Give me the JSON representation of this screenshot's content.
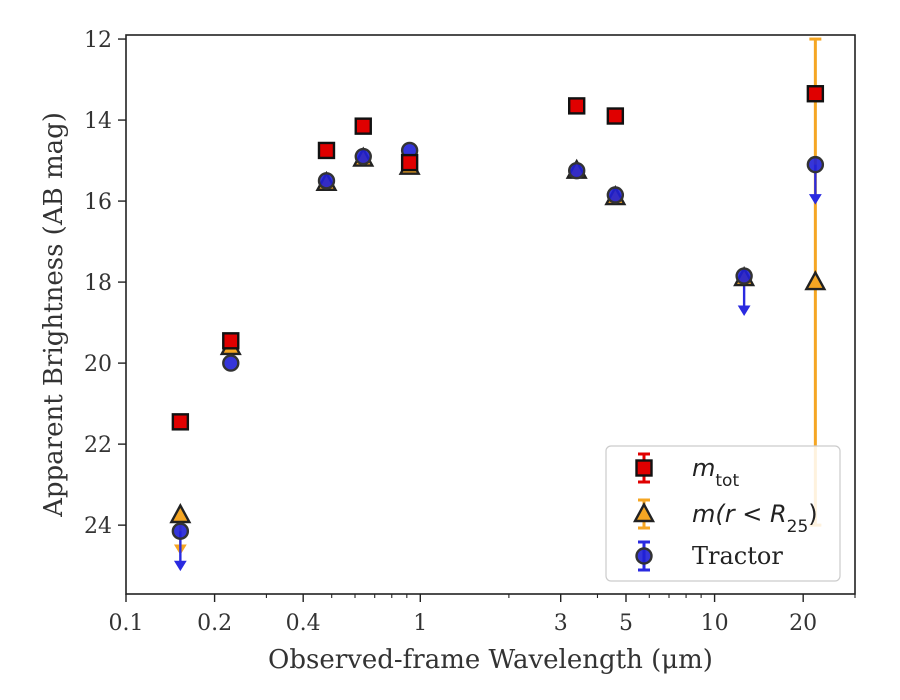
{
  "chart_data": {
    "type": "scatter",
    "xlabel": "Observed-frame Wavelength (μm)",
    "ylabel": "Apparent Brightness (AB mag)",
    "xscale": "log",
    "xlim": [
      0.1,
      30
    ],
    "ylim": [
      25.7,
      11.9
    ],
    "y_inverted": true,
    "xticks": [
      {
        "value": 0.1,
        "label": "0.1"
      },
      {
        "value": 0.2,
        "label": "0.2"
      },
      {
        "value": 0.4,
        "label": "0.4"
      },
      {
        "value": 1,
        "label": "1"
      },
      {
        "value": 3,
        "label": "3"
      },
      {
        "value": 5,
        "label": "5"
      },
      {
        "value": 10,
        "label": "10"
      },
      {
        "value": 20,
        "label": "20"
      }
    ],
    "yticks": [
      12,
      14,
      16,
      18,
      20,
      22,
      24
    ],
    "grid": false,
    "legend_position": "lower-right",
    "series": [
      {
        "name": "m_tot",
        "legend_main": "m",
        "legend_sub": "tot",
        "marker": "square",
        "face_color": "#e00000",
        "edge_color": "#111111",
        "err_color": "#e00000",
        "points": [
          {
            "x": 0.153,
            "y": 21.45
          },
          {
            "x": 0.227,
            "y": 19.45
          },
          {
            "x": 0.48,
            "y": 14.75
          },
          {
            "x": 0.64,
            "y": 14.15
          },
          {
            "x": 0.92,
            "y": 15.05
          },
          {
            "x": 3.4,
            "y": 13.65
          },
          {
            "x": 4.6,
            "y": 13.9
          },
          {
            "x": 22,
            "y": 13.35
          }
        ]
      },
      {
        "name": "m(r < R25)",
        "legend_main": "m(r < R",
        "legend_sub": "25",
        "legend_tail": ")",
        "marker": "triangle",
        "face_color": "#f5a623",
        "edge_color": "#222222",
        "err_color": "#f5a623",
        "points": [
          {
            "x": 0.153,
            "y": 23.75,
            "upper_limit": true
          },
          {
            "x": 0.227,
            "y": 19.6
          },
          {
            "x": 0.48,
            "y": 15.55
          },
          {
            "x": 0.64,
            "y": 14.95
          },
          {
            "x": 0.92,
            "y": 15.15
          },
          {
            "x": 3.4,
            "y": 15.25
          },
          {
            "x": 4.6,
            "y": 15.9
          },
          {
            "x": 12.6,
            "y": 17.9
          },
          {
            "x": 22,
            "y": 18.0,
            "yerr_low": 6.0,
            "yerr_high": 6.0
          }
        ]
      },
      {
        "name": "Tractor",
        "marker": "circle",
        "face_color": "#1f1fd6",
        "edge_color": "#333333",
        "err_color": "#2a2ae0",
        "points": [
          {
            "x": 0.153,
            "y": 24.15,
            "upper_limit": true
          },
          {
            "x": 0.227,
            "y": 20.0
          },
          {
            "x": 0.48,
            "y": 15.5
          },
          {
            "x": 0.64,
            "y": 14.9
          },
          {
            "x": 0.92,
            "y": 14.75
          },
          {
            "x": 3.4,
            "y": 15.25
          },
          {
            "x": 4.6,
            "y": 15.85
          },
          {
            "x": 12.6,
            "y": 17.85,
            "upper_limit": true
          },
          {
            "x": 22,
            "y": 15.1,
            "upper_limit": true
          }
        ]
      }
    ]
  }
}
